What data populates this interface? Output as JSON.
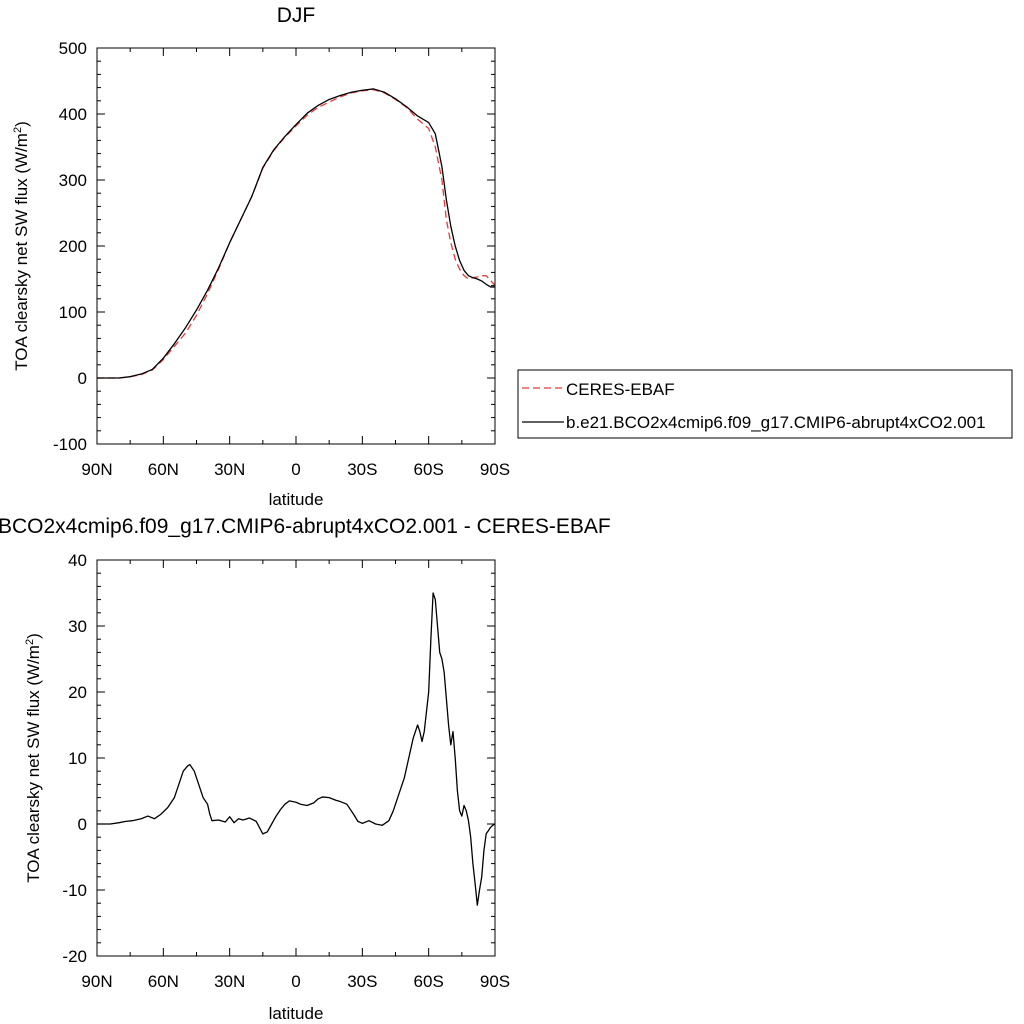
{
  "chart_data": [
    {
      "type": "line",
      "title": "DJF",
      "xlabel": "latitude",
      "ylabel": "TOA clearsky net SW flux (W/m",
      "ylabel_sup": "2",
      "ylabel_close": ")",
      "xlim": [
        90,
        -90
      ],
      "ylim": [
        -100,
        500
      ],
      "xticks": [
        90,
        60,
        30,
        0,
        -30,
        -60,
        -90
      ],
      "xtick_labels": [
        "90N",
        "60N",
        "30N",
        "0",
        "30S",
        "60S",
        "90S"
      ],
      "yticks": [
        -100,
        0,
        100,
        200,
        300,
        400,
        500
      ],
      "ytick_labels": [
        "-100",
        "0",
        "100",
        "200",
        "300",
        "400",
        "500"
      ],
      "legend_position": "right",
      "series": [
        {
          "name": "CERES-EBAF",
          "color": "#e8393b",
          "dash": "dashed",
          "x": [
            90,
            85,
            80,
            75,
            70,
            65,
            60,
            55,
            50,
            45,
            40,
            35,
            30,
            25,
            20,
            15,
            10,
            5,
            0,
            -5,
            -10,
            -15,
            -20,
            -25,
            -30,
            -35,
            -40,
            -45,
            -50,
            -55,
            -60,
            -63,
            -66,
            -68,
            -70,
            -72,
            -74,
            -76,
            -78,
            -80,
            -82,
            -84,
            -86,
            -88,
            -90
          ],
          "y": [
            0,
            0,
            0,
            2,
            5,
            12,
            28,
            48,
            68,
            95,
            128,
            165,
            205,
            240,
            275,
            318,
            345,
            365,
            382,
            398,
            410,
            418,
            426,
            432,
            435,
            437,
            432,
            422,
            410,
            392,
            378,
            350,
            300,
            240,
            205,
            180,
            165,
            155,
            150,
            152,
            153,
            155,
            155,
            148,
            140
          ]
        },
        {
          "name": "b.e21.BCO2x4cmip6.f09_g17.CMIP6-abrupt4xCO2.001",
          "color": "#000000",
          "dash": "solid",
          "x": [
            90,
            85,
            80,
            75,
            70,
            65,
            60,
            55,
            50,
            45,
            40,
            35,
            30,
            25,
            20,
            15,
            10,
            5,
            0,
            -5,
            -10,
            -15,
            -20,
            -25,
            -30,
            -35,
            -40,
            -45,
            -50,
            -55,
            -60,
            -63,
            -66,
            -68,
            -70,
            -72,
            -74,
            -76,
            -78,
            -80,
            -82,
            -84,
            -86,
            -88,
            -90
          ],
          "y": [
            0,
            0,
            0,
            2,
            6,
            13,
            30,
            52,
            76,
            103,
            133,
            167,
            205,
            240,
            275,
            319,
            346,
            366,
            384,
            401,
            413,
            422,
            428,
            433,
            436,
            438,
            433,
            423,
            411,
            397,
            387,
            370,
            320,
            270,
            230,
            200,
            178,
            163,
            155,
            152,
            150,
            147,
            142,
            138,
            138
          ]
        }
      ]
    },
    {
      "type": "line",
      "title": "BCO2x4cmip6.f09_g17.CMIP6-abrupt4xCO2.001 - CERES-EBAF",
      "xlabel": "latitude",
      "ylabel": "TOA clearsky net SW flux (W/m",
      "ylabel_sup": "2",
      "ylabel_close": ")",
      "xlim": [
        90,
        -90
      ],
      "ylim": [
        -20,
        40
      ],
      "xticks": [
        90,
        60,
        30,
        0,
        -30,
        -60,
        -90
      ],
      "xtick_labels": [
        "90N",
        "60N",
        "30N",
        "0",
        "30S",
        "60S",
        "90S"
      ],
      "yticks": [
        -20,
        -10,
        0,
        10,
        20,
        30,
        40
      ],
      "ytick_labels": [
        "-20",
        "-10",
        "0",
        "10",
        "20",
        "30",
        "40"
      ],
      "series": [
        {
          "color": "#000000",
          "dash": "solid",
          "x": [
            90,
            84,
            80,
            77,
            74,
            70,
            67,
            64,
            61,
            58,
            55,
            53,
            51,
            49,
            48,
            46,
            44,
            42,
            40,
            39,
            38,
            35,
            32,
            30,
            28,
            26,
            24,
            21,
            18,
            15,
            13,
            11,
            9,
            7,
            5,
            3,
            0,
            -2,
            -5,
            -8,
            -10,
            -12,
            -15,
            -18,
            -20,
            -23,
            -26,
            -28,
            -30,
            -33,
            -36,
            -39,
            -42,
            -44,
            -46,
            -49,
            -51,
            -53,
            -55,
            -56,
            -57,
            -58,
            -60,
            -61,
            -62,
            -63,
            -64,
            -65,
            -66,
            -67,
            -68,
            -69,
            -70,
            -71,
            -72,
            -73,
            -74,
            -75,
            -76,
            -77,
            -78,
            -79,
            -80,
            -81,
            -82,
            -83,
            -84,
            -85,
            -86,
            -87,
            -88,
            -89,
            -90
          ],
          "y": [
            0,
            0,
            0.2,
            0.4,
            0.5,
            0.8,
            1.2,
            0.8,
            1.5,
            2.5,
            4,
            6,
            8,
            8.8,
            9,
            8,
            6,
            4,
            3,
            1.5,
            0.5,
            0.6,
            0.3,
            1.1,
            0.2,
            0.8,
            0.6,
            0.9,
            0.4,
            -1.5,
            -1.2,
            0,
            1.2,
            2.2,
            3,
            3.5,
            3.3,
            3,
            2.8,
            3.2,
            3.8,
            4.1,
            4,
            3.6,
            3.4,
            3,
            1.5,
            0.4,
            0.1,
            0.5,
            0,
            -0.2,
            0.5,
            2,
            4,
            7,
            10,
            13,
            15,
            14,
            12.5,
            14,
            20,
            28,
            35,
            34,
            30,
            26,
            25,
            23,
            19,
            15,
            12,
            14,
            10,
            5,
            2,
            1.2,
            2.8,
            2,
            0.5,
            -2,
            -6,
            -9,
            -12.3,
            -10,
            -8,
            -4,
            -1.5,
            -1,
            -0.5,
            -0.2,
            0
          ]
        }
      ]
    }
  ]
}
